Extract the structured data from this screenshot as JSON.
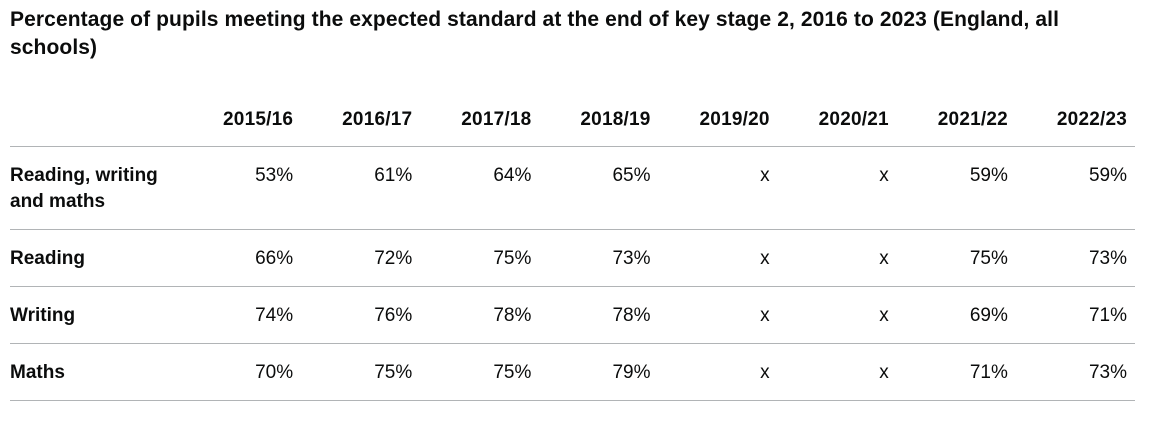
{
  "title": "Percentage of pupils meeting the expected standard at the end of key stage 2, 2016 to 2023 (England, all schools)",
  "table": {
    "columns": [
      "2015/16",
      "2016/17",
      "2017/18",
      "2018/19",
      "2019/20",
      "2020/21",
      "2021/22",
      "2022/23"
    ],
    "rows": [
      {
        "label": "Reading, writing and maths",
        "values": [
          "53%",
          "61%",
          "64%",
          "65%",
          "x",
          "x",
          "59%",
          "59%"
        ]
      },
      {
        "label": "Reading",
        "values": [
          "66%",
          "72%",
          "75%",
          "73%",
          "x",
          "x",
          "75%",
          "73%"
        ]
      },
      {
        "label": "Writing",
        "values": [
          "74%",
          "76%",
          "78%",
          "78%",
          "x",
          "x",
          "69%",
          "71%"
        ]
      },
      {
        "label": "Maths",
        "values": [
          "70%",
          "75%",
          "75%",
          "79%",
          "x",
          "x",
          "71%",
          "73%"
        ]
      }
    ]
  },
  "chart_data": {
    "type": "table",
    "title": "Percentage of pupils meeting the expected standard at the end of key stage 2, 2016 to 2023 (England, all schools)",
    "categories": [
      "2015/16",
      "2016/17",
      "2017/18",
      "2018/19",
      "2019/20",
      "2020/21",
      "2021/22",
      "2022/23"
    ],
    "series": [
      {
        "name": "Reading, writing and maths",
        "values": [
          "53%",
          "61%",
          "64%",
          "65%",
          "x",
          "x",
          "59%",
          "59%"
        ]
      },
      {
        "name": "Reading",
        "values": [
          "66%",
          "72%",
          "75%",
          "73%",
          "x",
          "x",
          "75%",
          "73%"
        ]
      },
      {
        "name": "Writing",
        "values": [
          "74%",
          "76%",
          "78%",
          "78%",
          "x",
          "x",
          "69%",
          "71%"
        ]
      },
      {
        "name": "Maths",
        "values": [
          "70%",
          "75%",
          "75%",
          "79%",
          "x",
          "x",
          "71%",
          "73%"
        ]
      }
    ],
    "missing_value_marker": "x",
    "value_unit": "%"
  },
  "colors": {
    "text": "#0b0c0c",
    "border": "#b1b4b6",
    "background": "#ffffff"
  }
}
